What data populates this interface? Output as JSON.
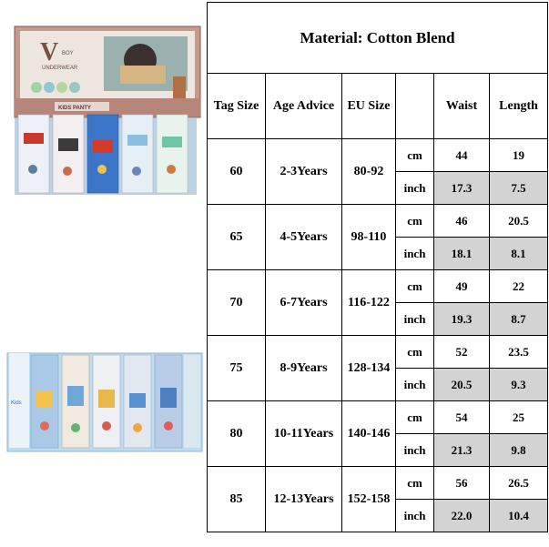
{
  "material_title": "Material: Cotton Blend",
  "headers": {
    "tag_size": "Tag Size",
    "age_advice": "Age Advice",
    "eu_size": "EU Size",
    "unit": "",
    "waist": "Waist",
    "length": "Length"
  },
  "rows": [
    {
      "tag": "60",
      "age": "2-3Years",
      "eu": "80-92",
      "cm": {
        "unit": "cm",
        "waist": "44",
        "length": "19"
      },
      "inch": {
        "unit": "inch",
        "waist": "17.3",
        "length": "7.5"
      }
    },
    {
      "tag": "65",
      "age": "4-5Years",
      "eu": "98-110",
      "cm": {
        "unit": "cm",
        "waist": "46",
        "length": "20.5"
      },
      "inch": {
        "unit": "inch",
        "waist": "18.1",
        "length": "8.1"
      }
    },
    {
      "tag": "70",
      "age": "6-7Years",
      "eu": "116-122",
      "cm": {
        "unit": "cm",
        "waist": "49",
        "length": "22"
      },
      "inch": {
        "unit": "inch",
        "waist": "19.3",
        "length": "8.7"
      }
    },
    {
      "tag": "75",
      "age": "8-9Years",
      "eu": "128-134",
      "cm": {
        "unit": "cm",
        "waist": "52",
        "length": "23.5"
      },
      "inch": {
        "unit": "inch",
        "waist": "20.5",
        "length": "9.3"
      }
    },
    {
      "tag": "80",
      "age": "10-11Years",
      "eu": "140-146",
      "cm": {
        "unit": "cm",
        "waist": "54",
        "length": "25"
      },
      "inch": {
        "unit": "inch",
        "waist": "21.3",
        "length": "9.8"
      }
    },
    {
      "tag": "85",
      "age": "12-13Years",
      "eu": "152-158",
      "cm": {
        "unit": "cm",
        "waist": "56",
        "length": "26.5"
      },
      "inch": {
        "unit": "inch",
        "waist": "22.0",
        "length": "10.4"
      }
    }
  ],
  "photos": {
    "top": {
      "brand_letter": "V",
      "brand_lines": [
        "BOY",
        "UNDERWEAR"
      ],
      "band_text": "KIDS PANTY"
    },
    "bottom": {
      "tag_text": "Kids"
    }
  },
  "colors": {
    "shade": "#d3d3d3",
    "box_top": "#c69a8a",
    "box_bottom": "#bcdcef"
  }
}
